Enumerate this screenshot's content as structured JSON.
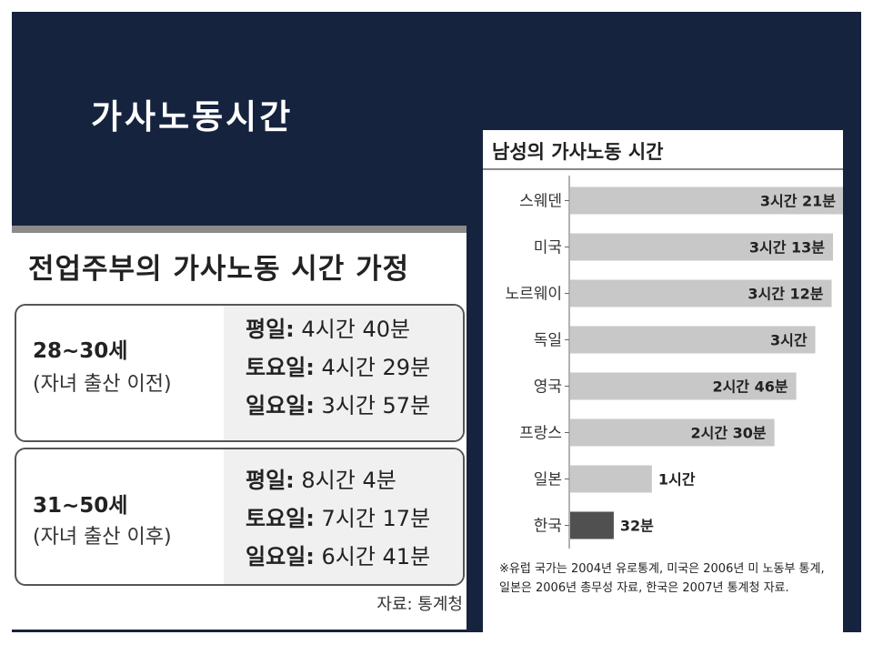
{
  "slide": {
    "title": "가사노동시간"
  },
  "left": {
    "title": "전업주부의 가사노동 시간 가정",
    "groups": [
      {
        "age": "28~30세",
        "note": "(자녀 출산 이전)",
        "lines": [
          {
            "day": "평일:",
            "time": " 4시간 40분"
          },
          {
            "day": "토요일:",
            "time": " 4시간 29분"
          },
          {
            "day": "일요일:",
            "time": " 3시간 57분"
          }
        ]
      },
      {
        "age": "31~50세",
        "note": "(자녀 출산 이후)",
        "lines": [
          {
            "day": "평일:",
            "time": " 8시간 4분"
          },
          {
            "day": "토요일:",
            "time": " 7시간 17분"
          },
          {
            "day": "일요일:",
            "time": " 6시간 41분"
          }
        ]
      }
    ],
    "source": "자료: 통계청"
  },
  "chart_data": {
    "type": "bar",
    "orientation": "horizontal",
    "title": "남성의 가사노동 시간",
    "categories": [
      "스웨덴",
      "미국",
      "노르웨이",
      "독일",
      "영국",
      "프랑스",
      "일본",
      "한국"
    ],
    "values_minutes": [
      201,
      193,
      192,
      180,
      166,
      150,
      60,
      32
    ],
    "labels": [
      "3시간 21분",
      "3시간 13분",
      "3시간 12분",
      "3시간",
      "2시간 46분",
      "2시간 30분",
      "1시간",
      "32분"
    ],
    "highlight": "한국",
    "colors": {
      "bar": "#c8c8c8",
      "highlight": "#505050"
    },
    "footnote": "※유럽 국가는 2004년 유로통계, 미국은 2006년 미 노동부 통계, 일본은 2006년 총무성 자료, 한국은 2007년 통계청 자료."
  }
}
